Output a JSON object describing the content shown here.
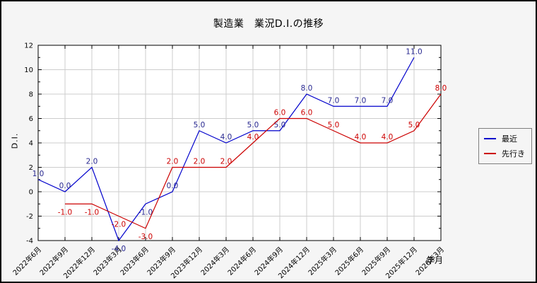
{
  "window": {
    "background": "#f5f5f5",
    "border_color": "#000000",
    "plot_background": "#ffffff",
    "grid_color": "#cdcdcd",
    "axis_color": "#000000"
  },
  "chart_data": {
    "type": "line",
    "title": "製造業　業況D.I.の推移",
    "xlabel": "年月",
    "ylabel": "D.I.",
    "ylim": [
      -4,
      12
    ],
    "y_ticks": [
      -4,
      -2,
      0,
      2,
      4,
      6,
      8,
      10,
      12
    ],
    "y_minor_step": 1,
    "grid": true,
    "legend_position": "outside-right",
    "categories": [
      "2022年6月",
      "2022年9月",
      "2022年12月",
      "2023年3月",
      "2023年6月",
      "2023年9月",
      "2023年12月",
      "2024年3月",
      "2024年6月",
      "2024年9月",
      "2024年12月",
      "2025年3月",
      "2025年6月",
      "2025年9月",
      "2025年12月",
      "2026年3月"
    ],
    "series": [
      {
        "key": "recent",
        "name": "最近",
        "color": "#0000cc",
        "label_color": "#27278f",
        "start_index": 0,
        "values": [
          1.0,
          0.0,
          2.0,
          -4.0,
          -1.0,
          0.0,
          5.0,
          4.0,
          5.0,
          5.0,
          8.0,
          7.0,
          7.0,
          7.0,
          11.0
        ]
      },
      {
        "key": "outlook",
        "name": "先行き",
        "color": "#cc0000",
        "label_color": "#cc0000",
        "start_index": 1,
        "values": [
          -1.0,
          -1.0,
          -2.0,
          -3.0,
          2.0,
          2.0,
          2.0,
          4.0,
          6.0,
          6.0,
          5.0,
          4.0,
          4.0,
          5.0,
          8.0
        ]
      }
    ]
  }
}
